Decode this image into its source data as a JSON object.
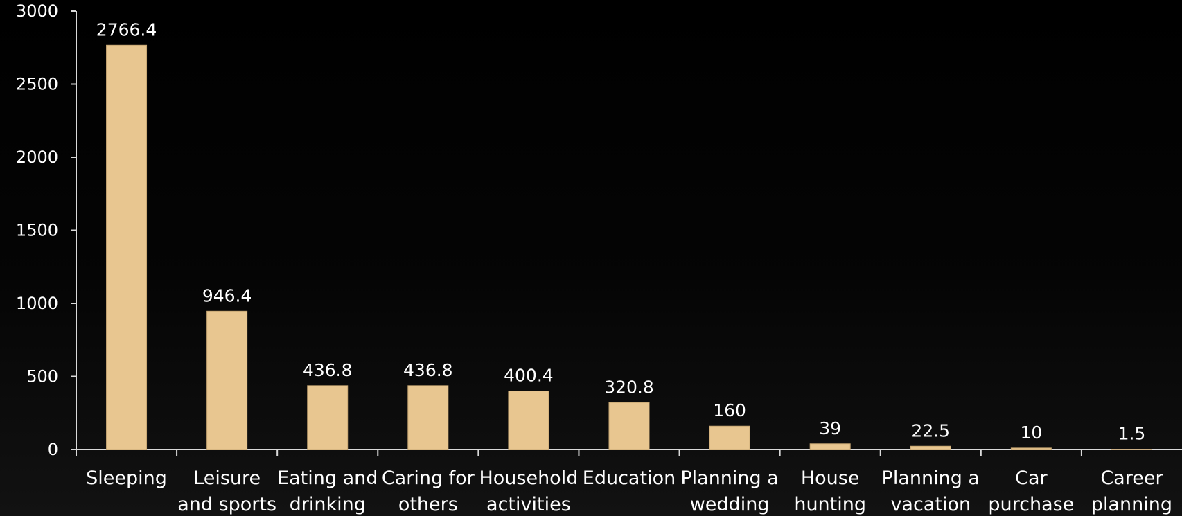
{
  "chart_data": {
    "type": "bar",
    "title": "",
    "xlabel": "",
    "ylabel": "",
    "ylim": [
      0,
      3000
    ],
    "yticks": [
      0,
      500,
      1000,
      1500,
      2000,
      2500,
      3000
    ],
    "grid": false,
    "legend": "none",
    "categories": [
      [
        "Sleeping"
      ],
      [
        "Leisure",
        "and sports"
      ],
      [
        "Eating and",
        "drinking"
      ],
      [
        "Caring for",
        "others"
      ],
      [
        "Household",
        "activities"
      ],
      [
        "Education"
      ],
      [
        "Planning a",
        "wedding"
      ],
      [
        "House",
        "hunting"
      ],
      [
        "Planning a",
        "vacation"
      ],
      [
        "Car",
        "purchase"
      ],
      [
        "Career",
        "planning"
      ]
    ],
    "values": [
      2766.4,
      946.4,
      436.8,
      436.8,
      400.4,
      320.8,
      160,
      39,
      22.5,
      10,
      1.5
    ],
    "data_labels": [
      "2766.4",
      "946.4",
      "436.8",
      "436.8",
      "400.4",
      "320.8",
      "160",
      "39",
      "22.5",
      "10",
      "1.5"
    ],
    "colors": {
      "bar": "#e8c690",
      "background": "#000000",
      "axis": "#d9d9d9",
      "text": "#ffffff"
    }
  }
}
